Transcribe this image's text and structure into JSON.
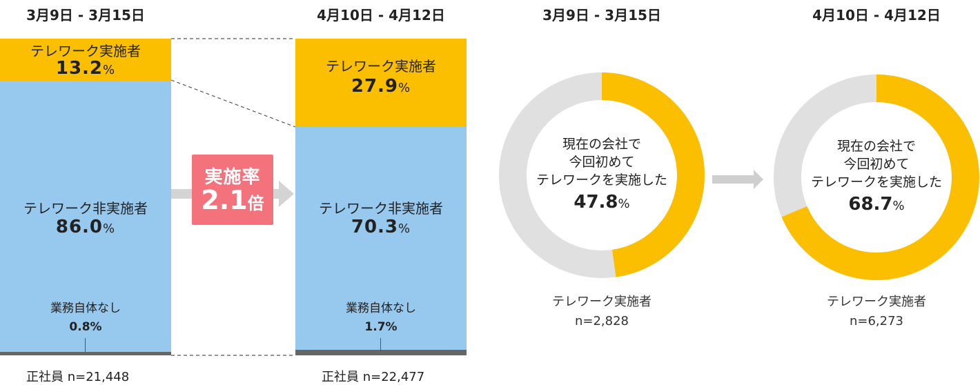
{
  "chart_data": [
    {
      "type": "bar",
      "categories": [
        "3月9日 - 3月15日",
        "4月10日 - 4月12日"
      ],
      "series": [
        {
          "name": "テレワーク実施者",
          "values": [
            13.2,
            27.9
          ]
        },
        {
          "name": "テレワーク非実施者",
          "values": [
            86.0,
            70.3
          ]
        },
        {
          "name": "業務自体なし",
          "values": [
            0.8,
            1.7
          ]
        }
      ],
      "colors": {
        "teleworker": "#fcbf00",
        "non_teleworker": "#97c8ee",
        "no_work": "#666666"
      },
      "samples": [
        "正社員 n=21,448",
        "正社員 n=22,477"
      ],
      "annotation": {
        "line1": "実施率",
        "value": "2.1",
        "unit": "倍"
      }
    },
    {
      "type": "pie",
      "style": "donut",
      "title": "3月9日 - 3月15日",
      "center_text": [
        "現在の会社で",
        "今回初めて",
        "テレワークを実施した"
      ],
      "value": 47.8,
      "remainder": 52.2,
      "colors": {
        "value": "#fcbf00",
        "remainder": "#e0e0e0"
      },
      "caption": "テレワーク実施者",
      "sample": "n=2,828"
    },
    {
      "type": "pie",
      "style": "donut",
      "title": "4月10日 - 4月12日",
      "center_text": [
        "現在の会社で",
        "今回初めて",
        "テレワークを実施した"
      ],
      "value": 68.7,
      "remainder": 31.3,
      "colors": {
        "value": "#fcbf00",
        "remainder": "#e0e0e0"
      },
      "caption": "テレワーク実施者",
      "sample": "n=6,273"
    }
  ],
  "labels": {
    "seg1_val": "13.2",
    "seg1_val2": "27.9",
    "seg2_val": "86.0",
    "seg2_val2": "70.3",
    "seg3_val": "0.8%",
    "seg3_val2": "1.7%",
    "pct": "%",
    "donut1_val": "47.8",
    "donut2_val": "68.7"
  }
}
